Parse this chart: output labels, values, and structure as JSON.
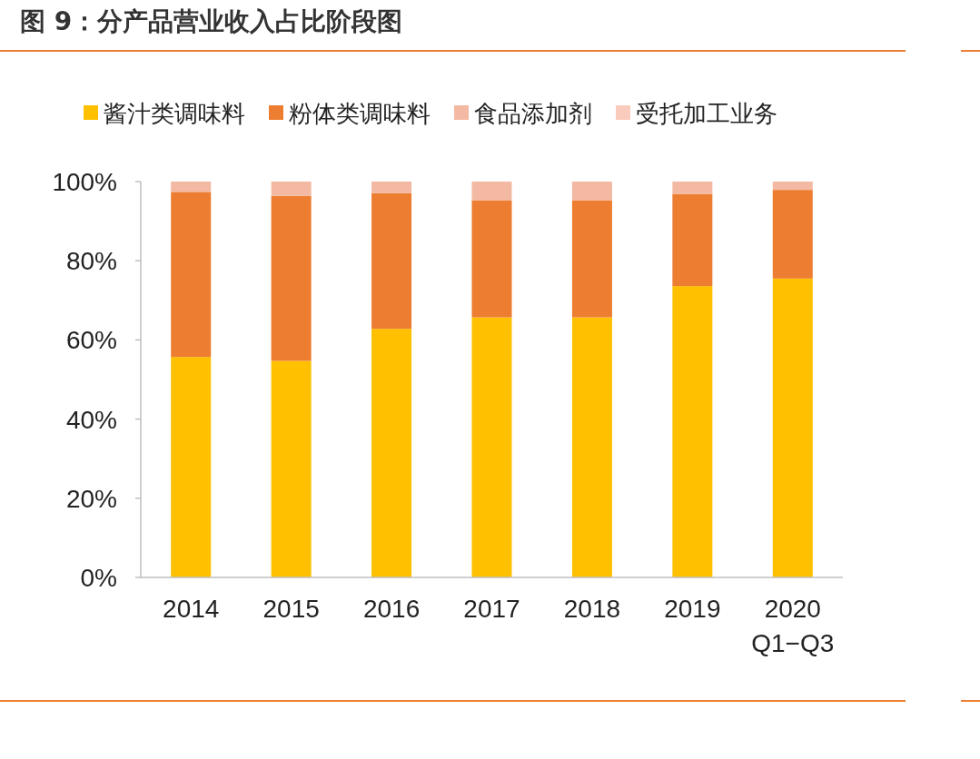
{
  "chart_data": {
    "type": "bar",
    "stacked": true,
    "title": "图 9：分产品营业收入占比阶段图",
    "categories": [
      "2014",
      "2015",
      "2016",
      "2017",
      "2018",
      "2019",
      "2020\nQ1−Q3"
    ],
    "series": [
      {
        "name": "酱汁类调味料",
        "color": "#ffc000",
        "values": [
          55.7,
          54.7,
          62.8,
          65.7,
          65.7,
          73.6,
          75.5
        ]
      },
      {
        "name": "粉体类调味料",
        "color": "#ed7d31",
        "values": [
          41.7,
          41.7,
          34.3,
          29.6,
          29.6,
          23.3,
          22.4
        ]
      },
      {
        "name": "食品添加剂",
        "color": "#f4b9a2",
        "values": [
          2.6,
          3.6,
          2.9,
          4.7,
          4.7,
          3.1,
          2.1
        ]
      },
      {
        "name": "受托加工业务",
        "color": "#f8cbbd",
        "values": [
          0,
          0,
          0,
          0,
          0,
          0,
          0
        ]
      }
    ],
    "ylim": [
      0,
      100
    ],
    "yticks": [
      {
        "value": 0,
        "label": "0%"
      },
      {
        "value": 20,
        "label": "20%"
      },
      {
        "value": 40,
        "label": "40%"
      },
      {
        "value": 60,
        "label": "60%"
      },
      {
        "value": 80,
        "label": "80%"
      },
      {
        "value": 100,
        "label": "100%"
      }
    ],
    "grid": false,
    "legend": "top"
  }
}
